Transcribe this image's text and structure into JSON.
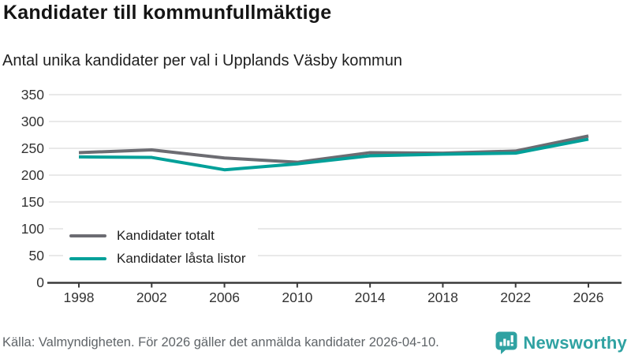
{
  "header": {
    "title": "Kandidater till kommunfullmäktige",
    "subtitle": "Antal unika kandidater per val i Upplands Väsby kommun"
  },
  "chart_data": {
    "type": "line",
    "title": "Kandidater till kommunfullmäktige",
    "subtitle": "Antal unika kandidater per val i Upplands Väsby kommun",
    "categories": [
      "1998",
      "2002",
      "2006",
      "2010",
      "2014",
      "2018",
      "2022",
      "2026"
    ],
    "series": [
      {
        "name": "Kandidater totalt",
        "color": "#6c6c72",
        "values": [
          242,
          247,
          232,
          224,
          242,
          241,
          245,
          273
        ]
      },
      {
        "name": "Kandidater låsta listor",
        "color": "#00a099",
        "values": [
          234,
          233,
          210,
          221,
          236,
          239,
          241,
          267
        ]
      }
    ],
    "xlabel": "",
    "ylabel": "",
    "ylim": [
      0,
      350
    ],
    "y_ticks": [
      0,
      50,
      100,
      150,
      200,
      250,
      300,
      350
    ],
    "grid": "horizontal",
    "legend_position": "inside-bottom-left",
    "colors": {
      "grid_line": "#e2e2e2",
      "axis_line": "#3a3a3a",
      "tick_label": "#333333"
    }
  },
  "legend": {
    "items": [
      {
        "label": "Kandidater totalt",
        "color": "#6c6c72"
      },
      {
        "label": "Kandidater låsta listor",
        "color": "#00a099"
      }
    ]
  },
  "footer": {
    "source": "Källa: Valmyndigheten. För 2026 gäller det anmälda kandidater 2026-04-10.",
    "brand": "Newsworthy",
    "brand_color": "#2fa2a2"
  }
}
